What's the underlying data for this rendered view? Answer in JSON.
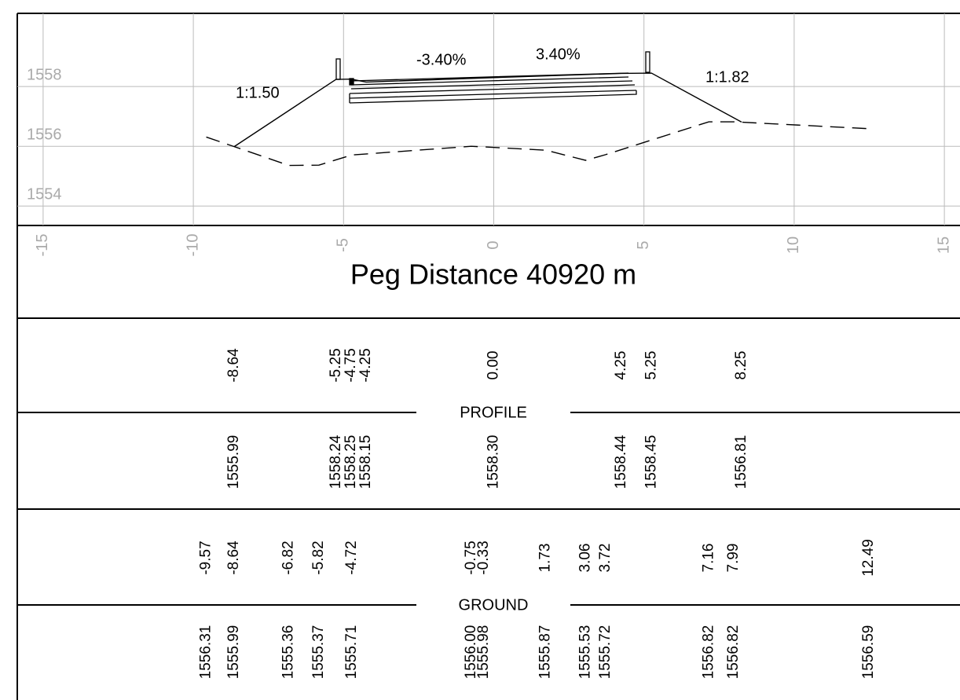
{
  "chart_data": {
    "type": "line",
    "title": "Peg Distance 40920 m",
    "xlim": [
      -15.86,
      15.52
    ],
    "ylim": [
      1553.35,
      1560.45
    ],
    "xticks": [
      -15,
      -10,
      -5,
      0,
      5,
      10,
      15
    ],
    "yticks": [
      1554,
      1556,
      1558
    ],
    "grid": true,
    "annotations": [
      "-3.40%",
      "3.40%",
      "1:1.50",
      "1:1.82"
    ],
    "series": [
      {
        "name": "PROFILE",
        "color": "#000000",
        "dashed": false,
        "x": [
          -8.64,
          -5.25,
          -4.75,
          -4.25,
          0,
          4.25,
          5.25,
          8.25
        ],
        "x_labels": [
          "-8.64",
          "-5.25",
          "-4.75",
          "-4.25",
          "0.00",
          "4.25",
          "5.25",
          "8.25"
        ],
        "values": [
          1555.99,
          1558.24,
          1558.25,
          1558.15,
          1558.3,
          1558.44,
          1558.45,
          1556.81
        ],
        "value_labels": [
          "1555.99",
          "1558.24",
          "1558.25",
          "1558.15",
          "1558.30",
          "1558.44",
          "1558.45",
          "1556.81"
        ]
      },
      {
        "name": "GROUND",
        "color": "#000000",
        "dashed": true,
        "x": [
          -9.57,
          -8.64,
          -6.82,
          -5.82,
          -4.72,
          -0.75,
          -0.33,
          1.73,
          3.06,
          3.72,
          7.16,
          7.99,
          12.49
        ],
        "x_labels": [
          "-9.57",
          "-8.64",
          "-6.82",
          "-5.82",
          "-4.72",
          "-0.75",
          "-0.33",
          "1.73",
          "3.06",
          "3.72",
          "7.16",
          "7.99",
          "12.49"
        ],
        "values": [
          1556.31,
          1555.99,
          1555.36,
          1555.37,
          1555.71,
          1556.0,
          1555.98,
          1555.87,
          1555.53,
          1555.72,
          1556.82,
          1556.82,
          1556.59
        ],
        "value_labels": [
          "1556.31",
          "1555.99",
          "1555.36",
          "1555.37",
          "1555.71",
          "1556.00",
          "1555.98",
          "1555.87",
          "1555.53",
          "1555.72",
          "1556.82",
          "1556.82",
          "1556.59"
        ]
      }
    ]
  }
}
